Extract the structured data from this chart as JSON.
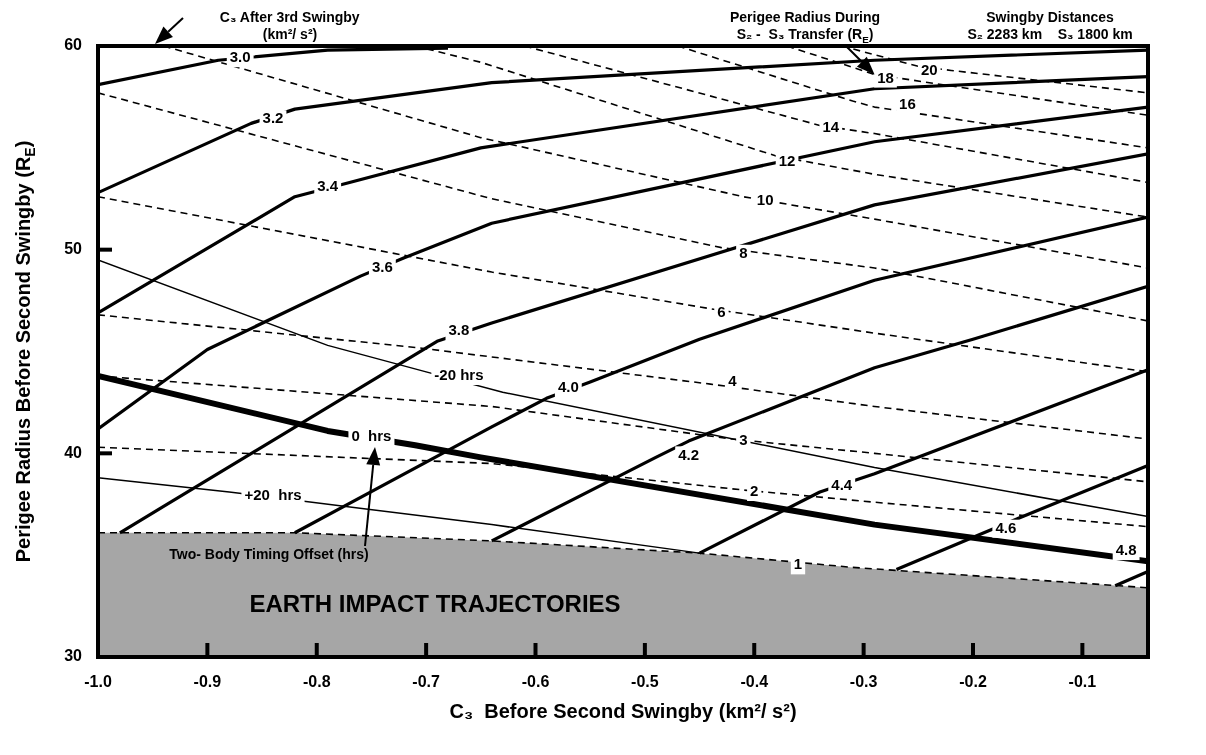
{
  "chart_data": {
    "type": "line",
    "xlabel": "C₃  Before Second Swingby (km²/ s²)",
    "ylabel": "Perigee Radius Before Second Swingby (R$_{E}$)",
    "xlim": [
      -1.0,
      -0.04
    ],
    "ylim": [
      30,
      60
    ],
    "xticks": [
      {
        "value": -1.0,
        "label": "-1.0"
      },
      -0.9,
      -0.8,
      -0.7,
      -0.6,
      -0.5,
      -0.4,
      -0.3,
      -0.2,
      -0.1
    ],
    "yticks": [
      30,
      40,
      50,
      60
    ],
    "grid": false,
    "legend": false,
    "marker": "none",
    "series": [
      {
        "color": "#000000",
        "line_style": "solid",
        "x": [
          -1.0,
          -0.89,
          -0.79,
          -0.68
        ],
        "values": [
          58.1,
          59.3,
          59.8,
          59.9
        ]
      },
      {
        "color": "#000000",
        "line_style": "solid",
        "x": [
          -1.0,
          -0.86,
          -0.82,
          -0.64,
          -0.29,
          -0.04
        ],
        "values": [
          52.8,
          56.2,
          56.9,
          58.2,
          59.3,
          59.8
        ]
      },
      {
        "color": "#000000",
        "line_style": "solid",
        "x": [
          -1.0,
          -0.82,
          -0.77,
          -0.65,
          -0.29,
          -0.04
        ],
        "values": [
          46.9,
          52.6,
          53.3,
          55.0,
          57.9,
          58.5
        ]
      },
      {
        "color": "#000000",
        "line_style": "solid",
        "x": [
          -1.0,
          -0.9,
          -0.76,
          -0.72,
          -0.64,
          -0.29,
          -0.04
        ],
        "values": [
          41.2,
          45.1,
          48.7,
          49.6,
          51.3,
          55.3,
          57.0
        ]
      },
      {
        "color": "#000000",
        "line_style": "solid",
        "x": [
          -0.98,
          -0.69,
          -0.64,
          -0.29,
          -0.04
        ],
        "values": [
          36.1,
          45.5,
          46.4,
          52.2,
          54.7
        ]
      },
      {
        "color": "#000000",
        "line_style": "solid",
        "x": [
          -0.82,
          -0.64,
          -0.59,
          -0.55,
          -0.45,
          -0.29,
          -0.04
        ],
        "values": [
          36.1,
          41.3,
          42.7,
          43.5,
          45.6,
          48.5,
          51.6
        ]
      },
      {
        "color": "#000000",
        "line_style": "solid",
        "x": [
          -0.64,
          -0.49,
          -0.46,
          -0.29,
          -0.2,
          -0.04
        ],
        "values": [
          35.7,
          39.8,
          40.6,
          44.2,
          45.6,
          48.2
        ]
      },
      {
        "color": "#000000",
        "line_style": "solid",
        "x": [
          -0.45,
          -0.34,
          -0.29,
          -0.04
        ],
        "values": [
          35.1,
          38.1,
          39.0,
          44.1
        ]
      },
      {
        "color": "#000000",
        "line_style": "solid",
        "x": [
          -0.27,
          -0.19,
          -0.15,
          -0.04
        ],
        "values": [
          34.3,
          36.1,
          37.0,
          39.4
        ]
      },
      {
        "color": "#000000",
        "line_style": "solid",
        "x": [
          -0.07,
          -0.04
        ],
        "values": [
          33.5,
          34.2
        ]
      },
      {
        "color": "#000000",
        "line_style": "dashed",
        "x": [
          -1.0,
          -0.64,
          -0.41,
          -0.29,
          -0.04
        ],
        "values": [
          40.3,
          39.5,
          38.2,
          37.6,
          36.4
        ]
      },
      {
        "color": "#000000",
        "line_style": "dashed",
        "x": [
          -1.0,
          -0.64,
          -0.42,
          -0.29,
          -0.04
        ],
        "values": [
          43.8,
          42.3,
          40.7,
          40.0,
          38.6
        ]
      },
      {
        "color": "#000000",
        "line_style": "dashed",
        "x": [
          -1.0,
          -0.71,
          -0.44,
          -0.29,
          -0.04
        ],
        "values": [
          46.8,
          45.2,
          43.4,
          42.3,
          40.7
        ]
      },
      {
        "color": "#000000",
        "line_style": "dashed",
        "x": [
          -1.0,
          -0.64,
          -0.44,
          -0.29,
          -0.04
        ],
        "values": [
          52.6,
          48.9,
          47.1,
          45.9,
          44.0
        ]
      },
      {
        "color": "#000000",
        "line_style": "dashed",
        "x": [
          -1.0,
          -0.64,
          -0.43,
          -0.29,
          -0.04
        ],
        "values": [
          57.7,
          52.5,
          50.1,
          49.1,
          46.5
        ]
      },
      {
        "color": "#000000",
        "line_style": "dashed",
        "x": [
          -0.94,
          -0.65,
          -0.41,
          -0.29,
          -0.04
        ],
        "values": [
          60.0,
          55.5,
          52.6,
          51.5,
          49.1
        ]
      },
      {
        "color": "#000000",
        "line_style": "dashed",
        "x": [
          -0.71,
          -0.65,
          -0.38,
          -0.29,
          -0.04
        ],
        "values": [
          60.0,
          59.2,
          54.6,
          53.7,
          51.6
        ]
      },
      {
        "color": "#000000",
        "line_style": "dashed",
        "x": [
          -0.61,
          -0.34,
          -0.29,
          -0.04
        ],
        "values": [
          60.0,
          56.1,
          55.7,
          53.3
        ]
      },
      {
        "color": "#000000",
        "line_style": "dashed",
        "x": [
          -0.47,
          -0.31,
          -0.29,
          -0.04
        ],
        "values": [
          60.0,
          57.3,
          57.0,
          55.0
        ]
      },
      {
        "color": "#000000",
        "line_style": "dashed",
        "x": [
          -0.37,
          -0.29,
          -0.04
        ],
        "values": [
          60.0,
          58.6,
          56.6
        ]
      },
      {
        "color": "#000000",
        "line_style": "dashed",
        "x": [
          -0.32,
          -0.25,
          -0.22,
          -0.04
        ],
        "values": [
          60.0,
          59.0,
          58.8,
          57.7
        ]
      },
      {
        "color": "#000000",
        "line_style": "solid",
        "x": [
          -1.0,
          -0.79,
          -0.7,
          -0.63,
          -0.29,
          -0.04
        ],
        "values": [
          49.5,
          45.3,
          44.0,
          43.0,
          39.3,
          36.9
        ]
      },
      {
        "color": "#000000",
        "line_style": "solid",
        "x": [
          -1.0,
          -0.79,
          -0.71,
          -0.65,
          -0.29,
          -0.04
        ],
        "values": [
          43.8,
          41.1,
          40.4,
          39.8,
          36.5,
          34.7
        ]
      },
      {
        "color": "#000000",
        "line_style": "solid",
        "x": [
          -1.0,
          -0.88,
          -0.64,
          -0.45
        ],
        "values": [
          38.8,
          38.1,
          36.5,
          35.1
        ]
      },
      {
        "type": "area",
        "color": "#a6a6a6",
        "line_style": "dashed",
        "x": [
          -1.0,
          -0.82,
          -0.64,
          -0.45,
          -0.31,
          -0.04
        ],
        "values": [
          36.1,
          36.1,
          35.7,
          35.1,
          34.4,
          33.4
        ]
      }
    ],
    "annotations": [
      "C₃ After 3rd Swingby\n(km²/ s²)",
      {
        "text": "Perigee Radius During\nS₂ -  S₃ Transfer (R$_{E}$)",
        "x": -0.29,
        "y": 58.6
      },
      "Swingby Distances\nS₂ 2283 km    S₃ 1800 km",
      "Two- Body Timing Offset (hrs)",
      "EARTH IMPACT TRAJECTORIES",
      {
        "text": "3.0",
        "x": -0.87,
        "y": 59.4
      },
      {
        "text": "3.2",
        "x": -0.84,
        "y": 56.4
      },
      {
        "text": "3.4",
        "x": -0.79,
        "y": 53.1
      },
      {
        "text": "3.6",
        "x": -0.74,
        "y": 49.1
      },
      {
        "text": "3.8",
        "x": -0.67,
        "y": 46.0
      },
      {
        "text": "4.0",
        "x": -0.57,
        "y": 43.2
      },
      {
        "text": "4.2",
        "x": -0.46,
        "y": 39.9
      },
      {
        "text": "4.4",
        "x": -0.32,
        "y": 38.4
      },
      {
        "text": "4.6",
        "x": -0.17,
        "y": 36.3
      },
      {
        "text": "4.8",
        "x": -0.06,
        "y": 35.2
      },
      {
        "text": "20",
        "x": -0.24,
        "y": 58.8
      },
      {
        "text": "18",
        "x": -0.28,
        "y": 58.4
      },
      {
        "text": "16",
        "x": -0.26,
        "y": 57.1
      },
      {
        "text": "14",
        "x": -0.33,
        "y": 56.0
      },
      {
        "text": "12",
        "x": -0.37,
        "y": 54.3
      },
      {
        "text": "10",
        "x": -0.39,
        "y": 52.4
      },
      {
        "text": "8",
        "x": -0.41,
        "y": 49.8
      },
      {
        "text": "6",
        "x": -0.43,
        "y": 46.9
      },
      {
        "text": "4",
        "x": -0.42,
        "y": 43.5
      },
      {
        "text": "3",
        "x": -0.41,
        "y": 40.6
      },
      {
        "text": "2",
        "x": -0.4,
        "y": 38.1
      },
      {
        "text": "1",
        "x": -0.36,
        "y": 34.5
      },
      {
        "text": "-20 hrs",
        "x": -0.67,
        "y": 43.8
      },
      {
        "text": "0  hrs",
        "x": -0.75,
        "y": 40.8
      },
      {
        "text": "+20  hrs",
        "x": -0.84,
        "y": 37.9
      }
    ]
  }
}
